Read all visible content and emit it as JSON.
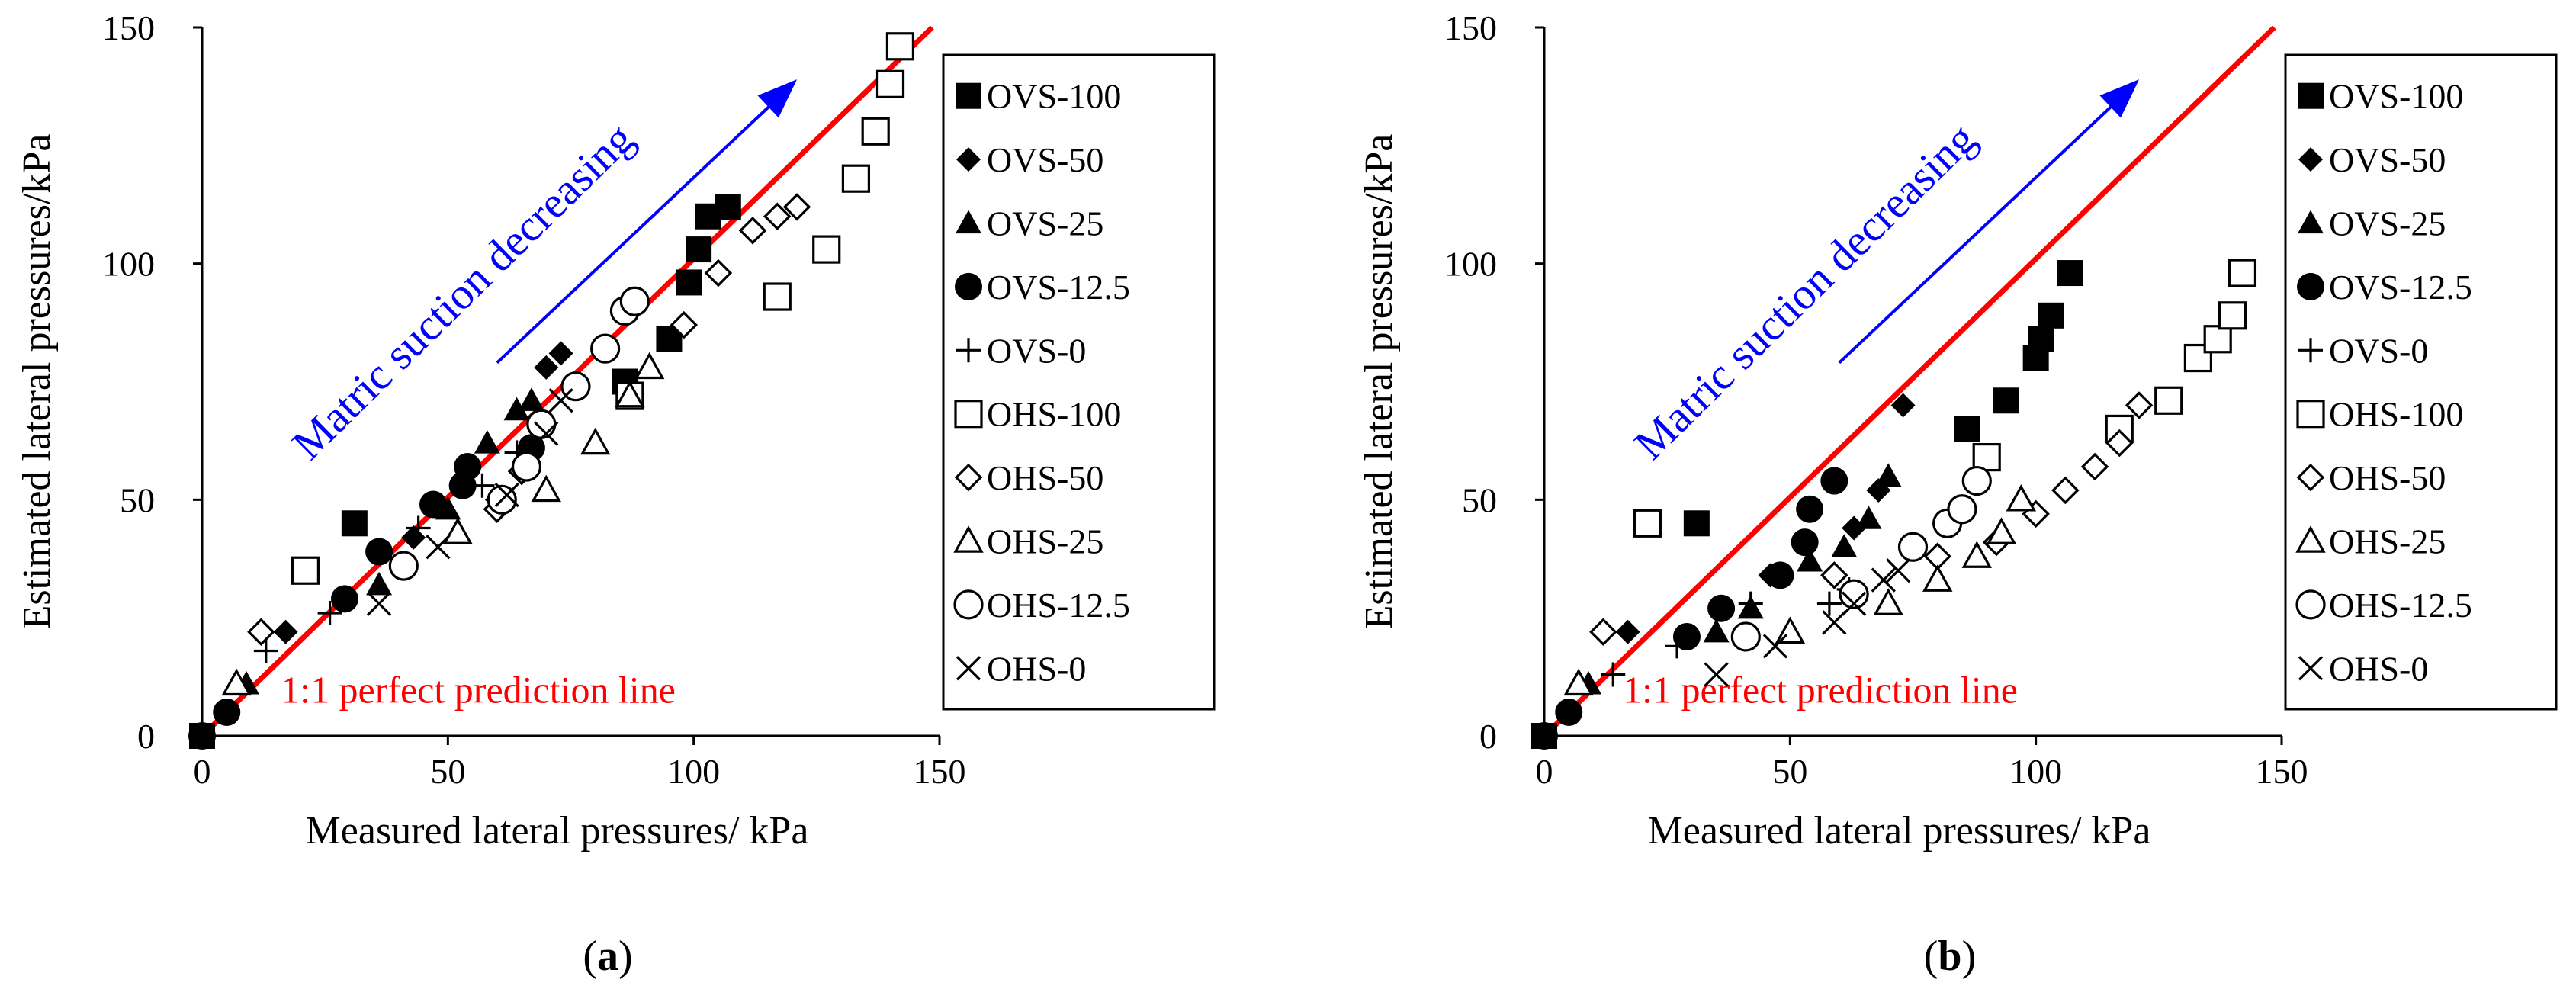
{
  "colors": {
    "line": "#ff0000",
    "arrow": "#0000ff",
    "marker": "#000000"
  },
  "chart_data": [
    {
      "panel": "(a)",
      "type": "scatter",
      "xlabel": "Measured lateral pressures/ kPa",
      "ylabel": "Estimated lateral pressures/kPa",
      "xlim": [
        0,
        150
      ],
      "ylim": [
        0,
        150
      ],
      "xticks": [
        "0",
        "50",
        "100",
        "150"
      ],
      "yticks": [
        "0",
        "50",
        "100",
        "150"
      ],
      "line_label": "1:1 perfect prediction line",
      "arrow_label": "Matric suction decreasing",
      "series": [
        {
          "name": "OVS-100",
          "marker": "square-filled",
          "points": [
            [
              0,
              0
            ],
            [
              31,
              45
            ],
            [
              86,
              75
            ],
            [
              95,
              84
            ],
            [
              99,
              96
            ],
            [
              101,
              103
            ],
            [
              103,
              110
            ],
            [
              107,
              112
            ]
          ]
        },
        {
          "name": "OVS-50",
          "marker": "diamond-filled",
          "points": [
            [
              0,
              0
            ],
            [
              17,
              22
            ],
            [
              43,
              42
            ],
            [
              60,
              50
            ],
            [
              70,
              78
            ],
            [
              73,
              81
            ]
          ]
        },
        {
          "name": "OVS-25",
          "marker": "triangle-filled",
          "points": [
            [
              0,
              0
            ],
            [
              9,
              11
            ],
            [
              36,
              32
            ],
            [
              50,
              48
            ],
            [
              58,
              62
            ],
            [
              64,
              69
            ],
            [
              67,
              71
            ]
          ]
        },
        {
          "name": "OVS-12.5",
          "marker": "circle-filled",
          "points": [
            [
              0,
              0
            ],
            [
              5,
              5
            ],
            [
              29,
              29
            ],
            [
              36,
              39
            ],
            [
              47,
              49
            ],
            [
              53,
              53
            ],
            [
              54,
              57
            ],
            [
              67,
              61
            ]
          ]
        },
        {
          "name": "OVS-0",
          "marker": "plus",
          "points": [
            [
              0,
              0
            ],
            [
              13,
              18
            ],
            [
              26,
              26
            ],
            [
              44,
              44
            ],
            [
              57,
              53
            ],
            [
              64,
              60
            ]
          ]
        },
        {
          "name": "OHS-100",
          "marker": "square-open",
          "points": [
            [
              21,
              35
            ],
            [
              87,
              72
            ],
            [
              117,
              93
            ],
            [
              127,
              103
            ],
            [
              133,
              118
            ],
            [
              137,
              128
            ],
            [
              140,
              138
            ],
            [
              142,
              146
            ]
          ]
        },
        {
          "name": "OHS-50",
          "marker": "diamond-open",
          "points": [
            [
              12,
              22
            ],
            [
              60,
              48
            ],
            [
              65,
              56
            ],
            [
              98,
              87
            ],
            [
              105,
              98
            ],
            [
              112,
              107
            ],
            [
              117,
              110
            ],
            [
              121,
              112
            ]
          ]
        },
        {
          "name": "OHS-25",
          "marker": "triangle-open",
          "points": [
            [
              7,
              11
            ],
            [
              52,
              43
            ],
            [
              70,
              52
            ],
            [
              80,
              62
            ],
            [
              87,
              72
            ],
            [
              91,
              78
            ]
          ]
        },
        {
          "name": "OHS-12.5",
          "marker": "circle-open",
          "points": [
            [
              41,
              36
            ],
            [
              61,
              50
            ],
            [
              66,
              57
            ],
            [
              69,
              66
            ],
            [
              76,
              74
            ],
            [
              82,
              82
            ],
            [
              86,
              90
            ],
            [
              88,
              92
            ]
          ]
        },
        {
          "name": "OHS-0",
          "marker": "cross",
          "points": [
            [
              0,
              0
            ],
            [
              36,
              28
            ],
            [
              48,
              40
            ],
            [
              62,
              51
            ],
            [
              70,
              64
            ],
            [
              73,
              71
            ]
          ]
        }
      ]
    },
    {
      "panel": "(b)",
      "type": "scatter",
      "xlabel": "Measured lateral pressures/ kPa",
      "ylabel": "Estimated lateral pressures/kPa",
      "xlim": [
        0,
        150
      ],
      "ylim": [
        0,
        150
      ],
      "xticks": [
        "0",
        "50",
        "100",
        "150"
      ],
      "yticks": [
        "0",
        "50",
        "100",
        "150"
      ],
      "line_label": "1:1 perfect prediction line",
      "arrow_label": "Matric suction decreasing",
      "series": [
        {
          "name": "OVS-100",
          "marker": "square-filled",
          "points": [
            [
              0,
              0
            ],
            [
              31,
              45
            ],
            [
              86,
              65
            ],
            [
              94,
              71
            ],
            [
              100,
              80
            ],
            [
              101,
              84
            ],
            [
              103,
              89
            ],
            [
              107,
              98
            ]
          ]
        },
        {
          "name": "OVS-50",
          "marker": "diamond-filled",
          "points": [
            [
              0,
              0
            ],
            [
              17,
              22
            ],
            [
              46,
              34
            ],
            [
              63,
              44
            ],
            [
              68,
              52
            ],
            [
              73,
              70
            ]
          ]
        },
        {
          "name": "OVS-25",
          "marker": "triangle-filled",
          "points": [
            [
              0,
              0
            ],
            [
              9,
              11
            ],
            [
              35,
              22
            ],
            [
              42,
              27
            ],
            [
              54,
              37
            ],
            [
              61,
              40
            ],
            [
              66,
              46
            ],
            [
              70,
              55
            ]
          ]
        },
        {
          "name": "OVS-12.5",
          "marker": "circle-filled",
          "points": [
            [
              0,
              0
            ],
            [
              5,
              5
            ],
            [
              29,
              21
            ],
            [
              36,
              27
            ],
            [
              48,
              34
            ],
            [
              53,
              41
            ],
            [
              54,
              48
            ],
            [
              59,
              54
            ]
          ]
        },
        {
          "name": "OVS-0",
          "marker": "plus",
          "points": [
            [
              0,
              0
            ],
            [
              14,
              13
            ],
            [
              27,
              19
            ],
            [
              42,
              28
            ],
            [
              58,
              28
            ],
            [
              62,
              31
            ]
          ]
        },
        {
          "name": "OHS-100",
          "marker": "square-open",
          "points": [
            [
              21,
              45
            ],
            [
              90,
              59
            ],
            [
              117,
              65
            ],
            [
              127,
              71
            ],
            [
              133,
              80
            ],
            [
              137,
              84
            ],
            [
              140,
              89
            ],
            [
              142,
              98
            ]
          ]
        },
        {
          "name": "OHS-50",
          "marker": "diamond-open",
          "points": [
            [
              12,
              22
            ],
            [
              59,
              34
            ],
            [
              80,
              38
            ],
            [
              92,
              41
            ],
            [
              100,
              47
            ],
            [
              106,
              52
            ],
            [
              112,
              57
            ],
            [
              117,
              62
            ],
            [
              121,
              70
            ]
          ]
        },
        {
          "name": "OHS-25",
          "marker": "triangle-open",
          "points": [
            [
              7,
              11
            ],
            [
              50,
              22
            ],
            [
              70,
              28
            ],
            [
              80,
              33
            ],
            [
              88,
              38
            ],
            [
              93,
              43
            ],
            [
              97,
              50
            ]
          ]
        },
        {
          "name": "OHS-12.5",
          "marker": "circle-open",
          "points": [
            [
              41,
              21
            ],
            [
              63,
              30
            ],
            [
              75,
              40
            ],
            [
              82,
              45
            ],
            [
              85,
              48
            ],
            [
              88,
              54
            ]
          ]
        },
        {
          "name": "OHS-0",
          "marker": "cross",
          "points": [
            [
              0,
              0
            ],
            [
              35,
              13
            ],
            [
              47,
              19
            ],
            [
              59,
              24
            ],
            [
              63,
              28
            ],
            [
              69,
              33
            ],
            [
              72,
              35
            ]
          ]
        }
      ]
    }
  ]
}
